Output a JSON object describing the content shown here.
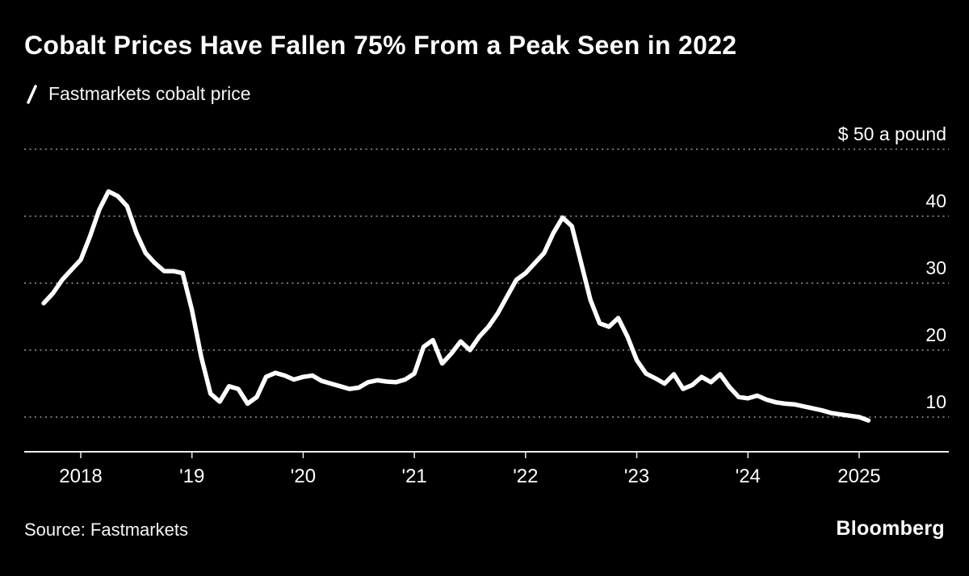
{
  "header": {
    "title": "Cobalt Prices Have Fallen 75% From a Peak Seen in 2022",
    "legend": {
      "series_label": "Fastmarkets cobalt price"
    }
  },
  "chart_data": {
    "type": "line",
    "title": "Cobalt Prices Have Fallen 75% From a Peak Seen in 2022",
    "ylabel": "$ a pound",
    "y_axis": {
      "top_label": "$ 50 a pound",
      "ticks": [
        50,
        40,
        30,
        20,
        10
      ],
      "range": [
        4.8,
        50
      ],
      "side": "right",
      "gridlines": "dotted"
    },
    "x_axis": {
      "labels": [
        "2018",
        "'19",
        "'20",
        "'21",
        "'22",
        "'23",
        "'24",
        "2025"
      ],
      "years": [
        2018,
        2019,
        2020,
        2021,
        2022,
        2023,
        2024,
        2025
      ],
      "range_dates": [
        "2017-09",
        "2025-02"
      ]
    },
    "series": [
      {
        "name": "Fastmarkets cobalt price",
        "color": "#ffffff",
        "dates": [
          "2017-09",
          "2017-10",
          "2017-11",
          "2017-12",
          "2018-01",
          "2018-02",
          "2018-03",
          "2018-04",
          "2018-05",
          "2018-06",
          "2018-07",
          "2018-08",
          "2018-09",
          "2018-10",
          "2018-11",
          "2018-12",
          "2019-01",
          "2019-02",
          "2019-03",
          "2019-04",
          "2019-05",
          "2019-06",
          "2019-07",
          "2019-08",
          "2019-09",
          "2019-10",
          "2019-11",
          "2019-12",
          "2020-01",
          "2020-02",
          "2020-03",
          "2020-04",
          "2020-05",
          "2020-06",
          "2020-07",
          "2020-08",
          "2020-09",
          "2020-10",
          "2020-11",
          "2020-12",
          "2021-01",
          "2021-02",
          "2021-03",
          "2021-04",
          "2021-05",
          "2021-06",
          "2021-07",
          "2021-08",
          "2021-09",
          "2021-10",
          "2021-11",
          "2021-12",
          "2022-01",
          "2022-02",
          "2022-03",
          "2022-04",
          "2022-05",
          "2022-06",
          "2022-07",
          "2022-08",
          "2022-09",
          "2022-10",
          "2022-11",
          "2022-12",
          "2023-01",
          "2023-02",
          "2023-03",
          "2023-04",
          "2023-05",
          "2023-06",
          "2023-07",
          "2023-08",
          "2023-09",
          "2023-10",
          "2023-11",
          "2023-12",
          "2024-01",
          "2024-02",
          "2024-03",
          "2024-04",
          "2024-05",
          "2024-06",
          "2024-07",
          "2024-08",
          "2024-09",
          "2024-10",
          "2024-11",
          "2024-12",
          "2025-01",
          "2025-02"
        ],
        "values": [
          27.0,
          28.5,
          30.5,
          32.0,
          33.5,
          37.0,
          41.0,
          43.7,
          43.0,
          41.5,
          37.5,
          34.5,
          33.0,
          31.8,
          31.8,
          31.5,
          26.0,
          19.0,
          13.5,
          12.3,
          14.6,
          14.2,
          12.0,
          13.0,
          16.0,
          16.6,
          16.2,
          15.6,
          16.0,
          16.2,
          15.4,
          15.0,
          14.6,
          14.2,
          14.4,
          15.2,
          15.5,
          15.3,
          15.2,
          15.6,
          16.5,
          20.5,
          21.5,
          18.0,
          19.5,
          21.3,
          20.0,
          22.0,
          23.5,
          25.5,
          28.0,
          30.5,
          31.5,
          33.0,
          34.5,
          37.5,
          39.8,
          38.5,
          33.0,
          27.5,
          24.0,
          23.5,
          24.8,
          22.0,
          18.5,
          16.5,
          15.8,
          15.0,
          16.4,
          14.2,
          14.8,
          16.0,
          15.2,
          16.4,
          14.5,
          13.0,
          12.8,
          13.2,
          12.6,
          12.2,
          12.0,
          11.9,
          11.6,
          11.3,
          11.0,
          10.6,
          10.4,
          10.2,
          10.0,
          9.5
        ]
      }
    ],
    "legend_position": "top-left"
  },
  "footer": {
    "source": "Source: Fastmarkets",
    "brand": "Bloomberg"
  }
}
